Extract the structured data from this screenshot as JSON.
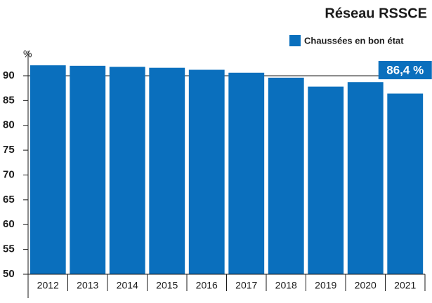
{
  "chart_data": {
    "type": "bar",
    "title": "Réseau RSSCE",
    "y_label": "%",
    "categories": [
      "2012",
      "2013",
      "2014",
      "2015",
      "2016",
      "2017",
      "2018",
      "2019",
      "2020",
      "2021"
    ],
    "series": [
      {
        "name": "Chaussées en bon état",
        "color": "#0a6fbd",
        "values": [
          92.1,
          92.0,
          91.8,
          91.6,
          91.2,
          90.6,
          89.6,
          87.8,
          88.7,
          86.4
        ]
      }
    ],
    "annotation": "86,4 %",
    "ylim": [
      50,
      95
    ],
    "yticks": [
      50,
      55,
      60,
      65,
      70,
      75,
      80,
      85,
      90
    ]
  }
}
